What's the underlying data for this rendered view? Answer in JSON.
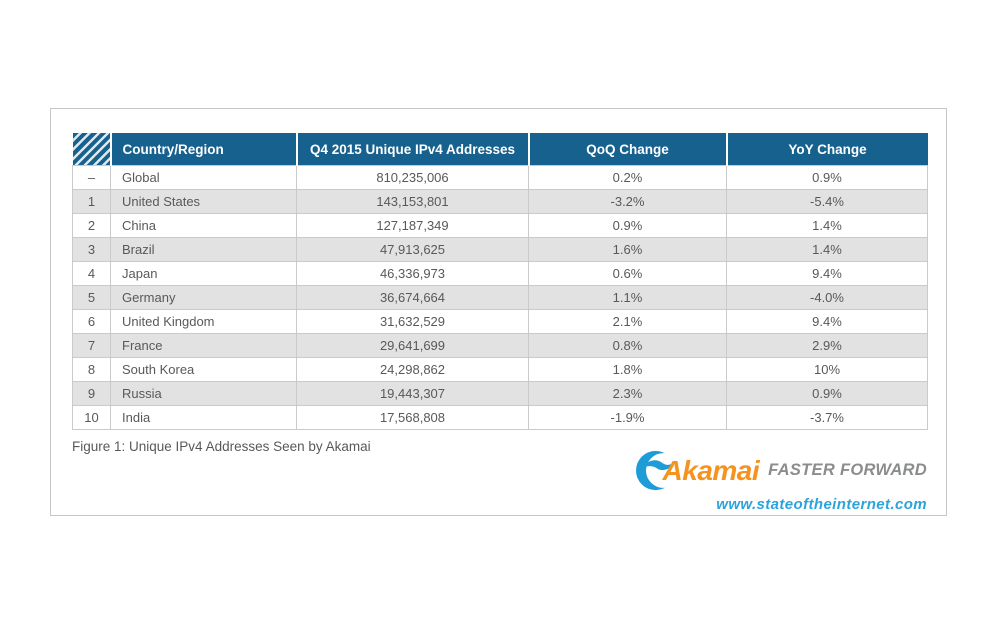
{
  "colors": {
    "header_bg": "#17618E",
    "row_alt_bg": "#E2E2E3",
    "cell_text": "#58595B",
    "cell_border": "#C9CACB",
    "brand_orange": "#F6921E",
    "brand_blue": "#1E9CD7",
    "tagline_gray": "#8A8C8E",
    "url_blue": "#2BA3DC"
  },
  "table": {
    "columns": [
      "Country/Region",
      "Q4 2015 Unique IPv4 Addresses",
      "QoQ Change",
      "YoY Change"
    ],
    "rows": [
      {
        "rank": "–",
        "country": "Global",
        "addresses": "810,235,006",
        "qoq": "0.2%",
        "yoy": "0.9%"
      },
      {
        "rank": "1",
        "country": "United States",
        "addresses": "143,153,801",
        "qoq": "-3.2%",
        "yoy": "-5.4%"
      },
      {
        "rank": "2",
        "country": "China",
        "addresses": "127,187,349",
        "qoq": "0.9%",
        "yoy": "1.4%"
      },
      {
        "rank": "3",
        "country": "Brazil",
        "addresses": "47,913,625",
        "qoq": "1.6%",
        "yoy": "1.4%"
      },
      {
        "rank": "4",
        "country": "Japan",
        "addresses": "46,336,973",
        "qoq": "0.6%",
        "yoy": "9.4%"
      },
      {
        "rank": "5",
        "country": "Germany",
        "addresses": "36,674,664",
        "qoq": "1.1%",
        "yoy": "-4.0%"
      },
      {
        "rank": "6",
        "country": "United Kingdom",
        "addresses": "31,632,529",
        "qoq": "2.1%",
        "yoy": "9.4%"
      },
      {
        "rank": "7",
        "country": "France",
        "addresses": "29,641,699",
        "qoq": "0.8%",
        "yoy": "2.9%"
      },
      {
        "rank": "8",
        "country": "South Korea",
        "addresses": "24,298,862",
        "qoq": "1.8%",
        "yoy": "10%"
      },
      {
        "rank": "9",
        "country": "Russia",
        "addresses": "19,443,307",
        "qoq": "2.3%",
        "yoy": "0.9%"
      },
      {
        "rank": "10",
        "country": "India",
        "addresses": "17,568,808",
        "qoq": "-1.9%",
        "yoy": "-3.7%"
      }
    ]
  },
  "caption": "Figure 1: Unique IPv4 Addresses Seen by Akamai",
  "logo": {
    "brand": "Akamai",
    "tagline": "FASTER FORWARD",
    "url": "www.stateoftheinternet.com"
  }
}
